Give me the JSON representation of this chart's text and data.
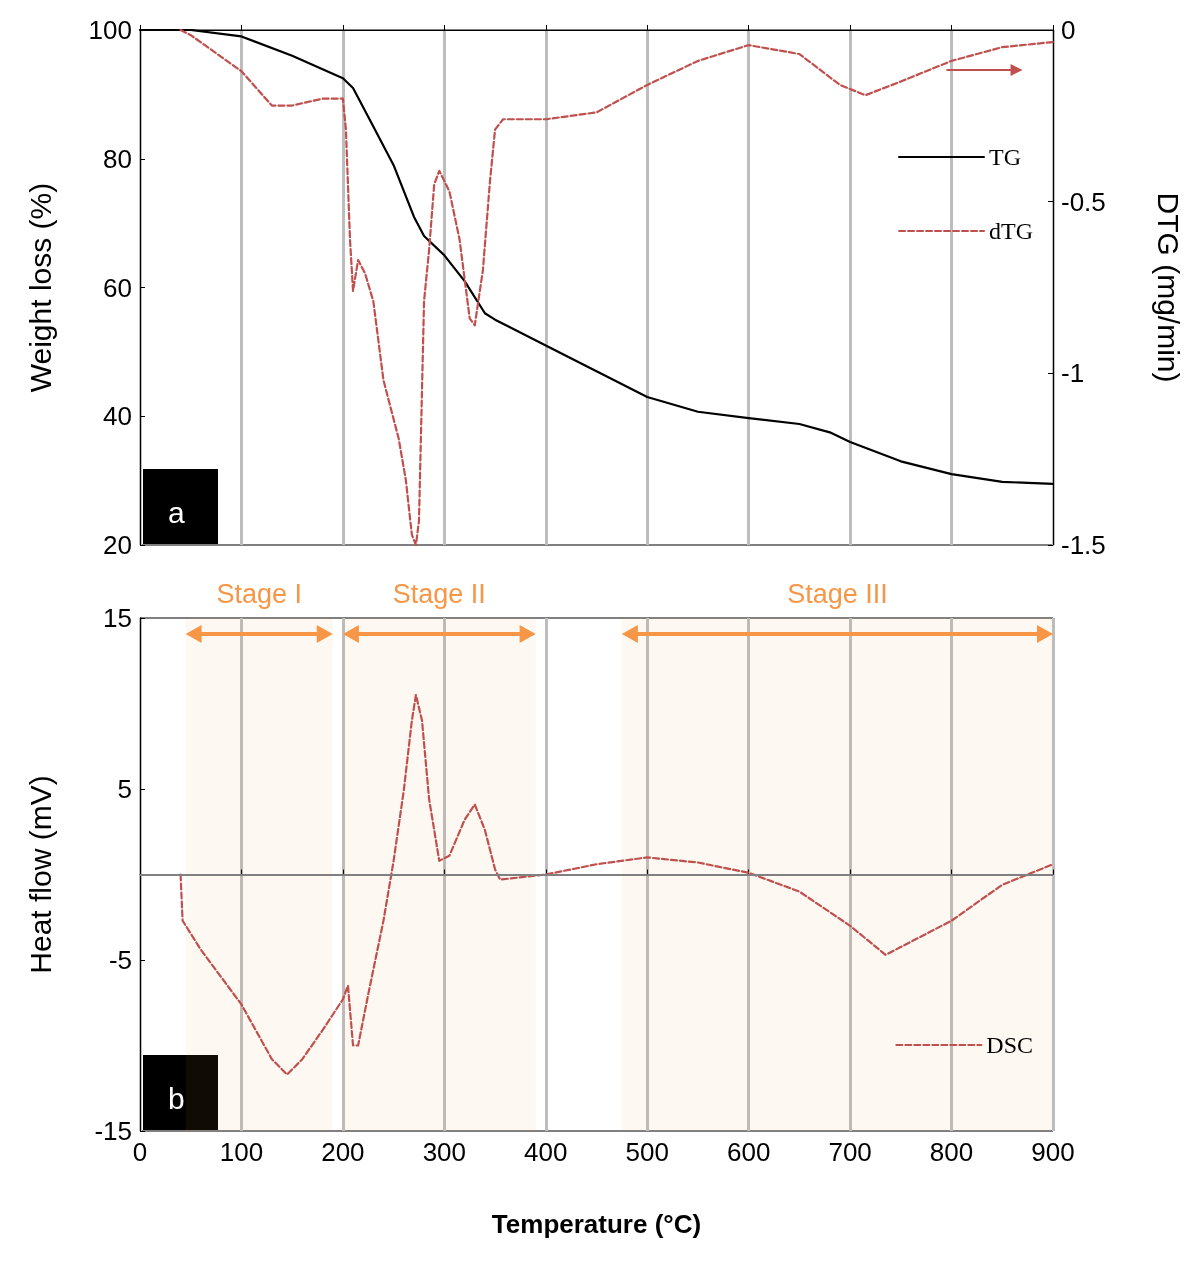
{
  "chart_data": [
    {
      "type": "line",
      "ylabel": "Weight loss (%)",
      "y2label": "DTG (mg/min)",
      "xlim": [
        0,
        900
      ],
      "xticks": [
        0,
        100,
        200,
        300,
        400,
        500,
        600,
        700,
        800,
        900
      ],
      "tick_labels": "y",
      "ylim": [
        20,
        100
      ],
      "yticks": [
        20,
        40,
        60,
        80,
        100
      ],
      "y2lim": [
        -1.5,
        0
      ],
      "y2ticks": [
        -1.5,
        -1,
        -0.5,
        0
      ],
      "grid": "x",
      "legend": "right",
      "marker": "none",
      "annotations": [
        "a"
      ],
      "series": [
        {
          "name": "TG",
          "color": "#000000",
          "line_style": "solid",
          "x": [
            0,
            50,
            100,
            150,
            200,
            210,
            230,
            250,
            270,
            280,
            300,
            320,
            340,
            350,
            400,
            450,
            500,
            550,
            600,
            650,
            680,
            700,
            750,
            800,
            850,
            900
          ],
          "values": [
            100,
            100,
            99,
            96,
            92.5,
            91,
            85,
            79,
            71,
            68,
            65,
            61,
            56,
            55,
            51,
            47,
            43,
            40.7,
            39.7,
            38.8,
            37.5,
            36,
            33,
            31,
            29.8,
            29.5
          ]
        },
        {
          "name": "dTG",
          "color": "#c0504d",
          "line_style": "dashed",
          "axis": "y2",
          "x": [
            40,
            50,
            100,
            130,
            150,
            180,
            200,
            203,
            207,
            210,
            215,
            222,
            230,
            240,
            255,
            262,
            268,
            272,
            275,
            280,
            285,
            290,
            295,
            305,
            315,
            325,
            330,
            338,
            345,
            350,
            358,
            400,
            450,
            500,
            550,
            600,
            650,
            690,
            715,
            750,
            800,
            850,
            900
          ],
          "values": [
            0,
            -0.015,
            -0.12,
            -0.22,
            -0.22,
            -0.2,
            -0.2,
            -0.29,
            -0.61,
            -0.76,
            -0.67,
            -0.71,
            -0.79,
            -1.02,
            -1.19,
            -1.31,
            -1.47,
            -1.5,
            -1.43,
            -0.79,
            -0.64,
            -0.45,
            -0.41,
            -0.47,
            -0.61,
            -0.84,
            -0.86,
            -0.7,
            -0.44,
            -0.29,
            -0.26,
            -0.26,
            -0.24,
            -0.16,
            -0.09,
            -0.044,
            -0.07,
            -0.16,
            -0.19,
            -0.15,
            -0.09,
            -0.05,
            -0.035
          ]
        }
      ]
    },
    {
      "type": "line",
      "xlabel": "Temperature (°C)",
      "ylabel": "Heat flow (mV)",
      "xlim": [
        0,
        900
      ],
      "xticks": [
        0,
        100,
        200,
        300,
        400,
        500,
        600,
        700,
        800,
        900
      ],
      "ylim": [
        -15,
        15
      ],
      "yticks": [
        -15,
        -5,
        5,
        15
      ],
      "grid": "x",
      "legend": "bottom right",
      "marker": "none",
      "annotations": [
        "b"
      ],
      "ref_lines": [
        {
          "axis": "y",
          "value": 0,
          "color": "#808080"
        }
      ],
      "bands": [
        {
          "axis": "x",
          "from": 45,
          "to": 190,
          "label": "Stage I",
          "color": "#f79646"
        },
        {
          "axis": "x",
          "from": 200,
          "to": 390,
          "label": "Stage II",
          "color": "#f79646"
        },
        {
          "axis": "x",
          "from": 475,
          "to": 900,
          "label": "Stage III",
          "color": "#f79646"
        }
      ],
      "series": [
        {
          "name": "DSC",
          "color": "#c0504d",
          "line_style": "dashed",
          "x": [
            40,
            42,
            60,
            100,
            130,
            145,
            160,
            180,
            200,
            205,
            210,
            215,
            225,
            240,
            250,
            260,
            268,
            272,
            278,
            285,
            295,
            305,
            320,
            330,
            340,
            350,
            355,
            400,
            450,
            500,
            550,
            600,
            650,
            700,
            735,
            800,
            850,
            900
          ],
          "values": [
            0,
            -2.7,
            -4.4,
            -7.6,
            -10.8,
            -11.7,
            -10.8,
            -9.1,
            -7.3,
            -6.5,
            -10,
            -10,
            -7,
            -2.7,
            0.8,
            4.9,
            9,
            10.5,
            9,
            4.4,
            0.8,
            1.1,
            3.2,
            4.1,
            2.6,
            0.3,
            -0.3,
            0,
            0.6,
            1,
            0.7,
            0.1,
            -1,
            -3,
            -4.7,
            -2.7,
            -0.6,
            0.6
          ]
        }
      ]
    }
  ]
}
